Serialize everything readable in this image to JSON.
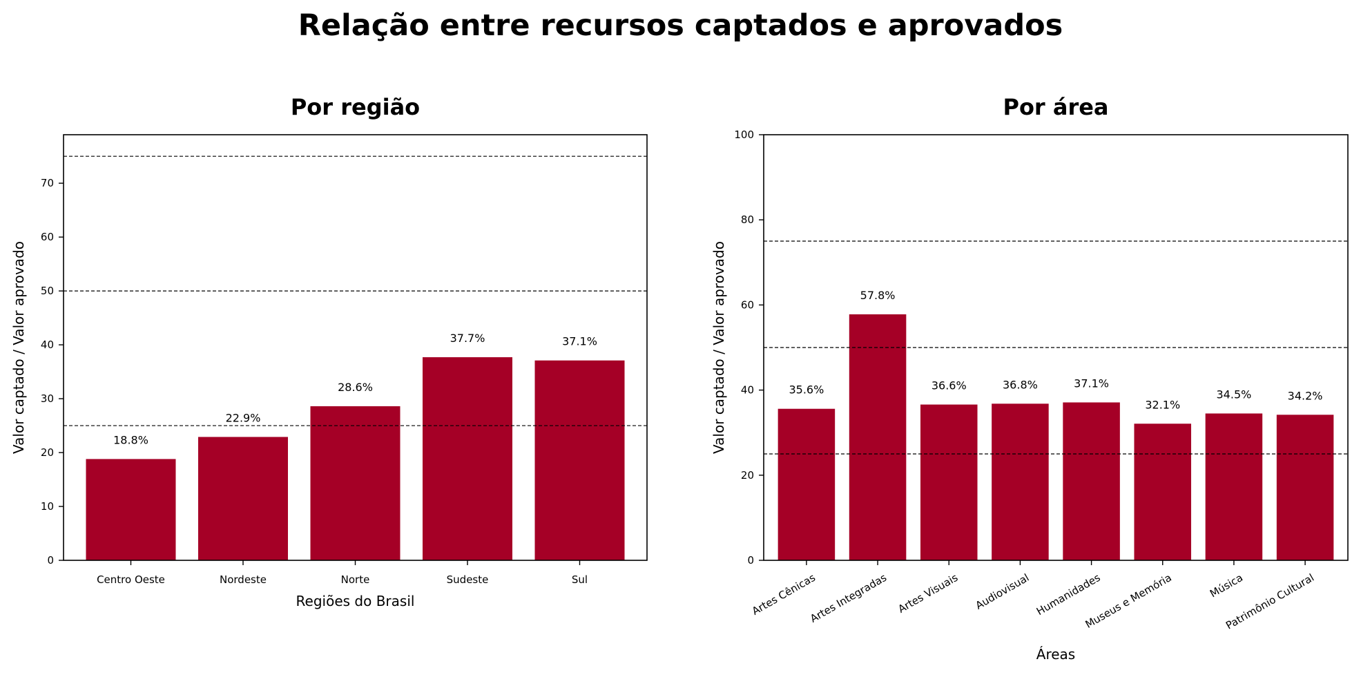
{
  "title": "Relação entre recursos captados e aprovados",
  "colors": {
    "bar": "#a50026",
    "grid": "#000000",
    "axis": "#000000"
  },
  "chart_data": [
    {
      "type": "bar",
      "title": "Por região",
      "xlabel": "Regiões do Brasil",
      "ylabel": "Valor captado / Valor aprovado",
      "categories": [
        "Centro Oeste",
        "Nordeste",
        "Norte",
        "Sudeste",
        "Sul"
      ],
      "values": [
        18.8,
        22.9,
        28.6,
        37.7,
        37.1
      ],
      "data_labels": [
        "18.8%",
        "22.9%",
        "28.6%",
        "37.7%",
        "37.1%"
      ],
      "ylim": [
        0,
        79
      ],
      "yticks": [
        0,
        10,
        20,
        30,
        40,
        50,
        60,
        70
      ],
      "reference_lines": [
        25,
        50,
        75
      ],
      "xtick_rotation": 0
    },
    {
      "type": "bar",
      "title": "Por área",
      "xlabel": "Áreas",
      "ylabel": "Valor captado / Valor aprovado",
      "categories": [
        "Artes Cênicas",
        "Artes Integradas",
        "Artes Visuais",
        "Audiovisual",
        "Humanidades",
        "Museus e Memória",
        "Música",
        "Patrimônio Cultural"
      ],
      "values": [
        35.6,
        57.8,
        36.6,
        36.8,
        37.1,
        32.1,
        34.5,
        34.2
      ],
      "data_labels": [
        "35.6%",
        "57.8%",
        "36.6%",
        "36.8%",
        "37.1%",
        "32.1%",
        "34.5%",
        "34.2%"
      ],
      "ylim": [
        0,
        100
      ],
      "yticks": [
        0,
        20,
        40,
        60,
        80,
        100
      ],
      "reference_lines": [
        25,
        50,
        75
      ],
      "xtick_rotation": -30
    }
  ]
}
